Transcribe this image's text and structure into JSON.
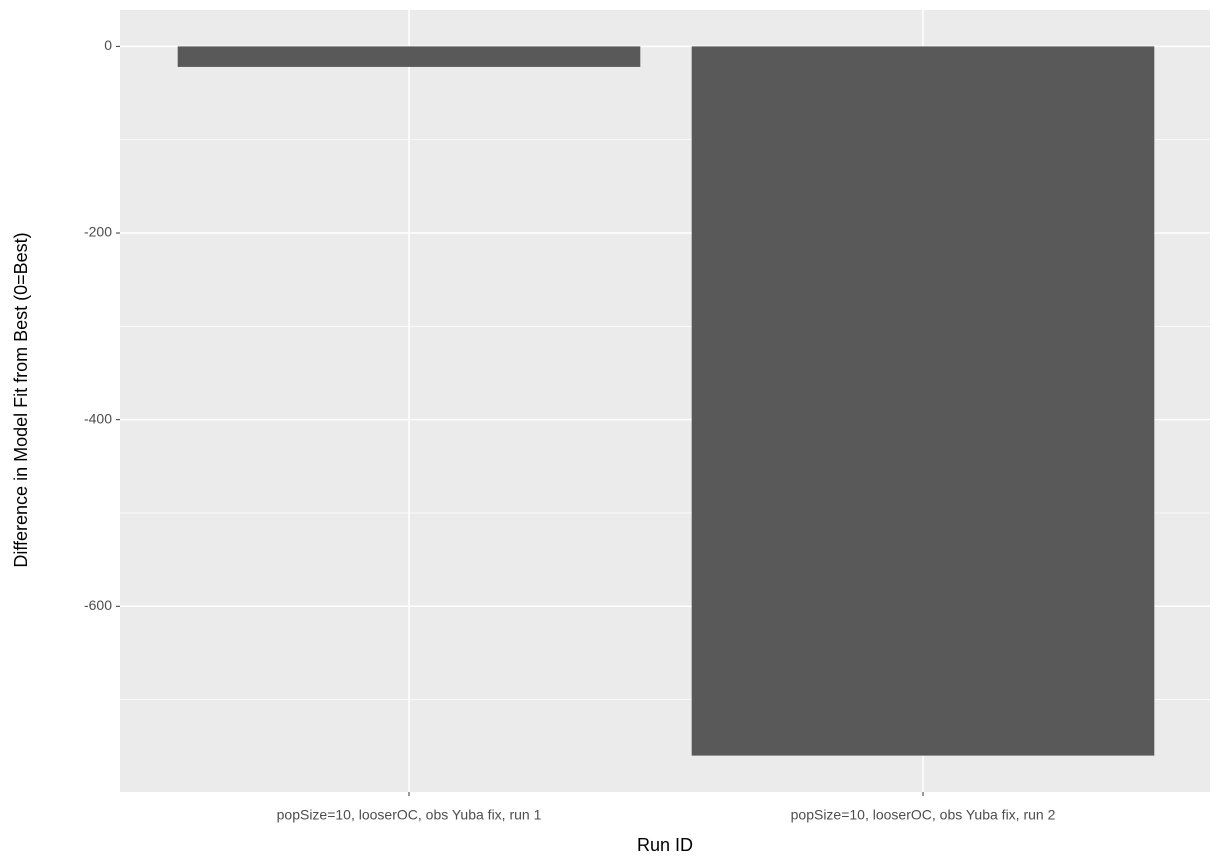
{
  "chart_data": {
    "type": "bar",
    "x_label": "Run ID",
    "y_label": "Difference in Model Fit from Best (0=Best)",
    "categories": [
      "popSize=10, looserOC, obs Yuba fix, run 1",
      "popSize=10, looserOC, obs Yuba fix, run 2"
    ],
    "values": [
      -22,
      -760
    ],
    "color": "#595959",
    "ylim": [
      -799,
      39
    ],
    "yticks": [
      0,
      -200,
      -400,
      -600
    ],
    "minor_yticks": [
      -100,
      -300,
      -500,
      -700
    ],
    "grid": true
  }
}
